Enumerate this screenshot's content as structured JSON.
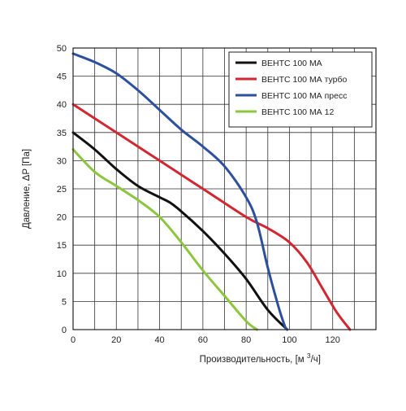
{
  "chart_data": {
    "type": "line",
    "xlabel": "Производительность, [м",
    "xlabel_sup": "3",
    "xlabel_suffix": "/ч]",
    "ylabel": "Давление, ΔP [Па]",
    "xlim": [
      0,
      140
    ],
    "ylim": [
      0,
      50
    ],
    "x_grid_step": 10,
    "y_grid_step": 5,
    "x_ticks": [
      0,
      20,
      40,
      60,
      80,
      100,
      120
    ],
    "y_ticks": [
      0,
      5,
      10,
      15,
      20,
      25,
      30,
      35,
      40,
      45,
      50
    ],
    "grid": true,
    "legend_position": "top-right",
    "series": [
      {
        "name": "ВЕНТС 100 МА",
        "color": "#111111",
        "points": [
          [
            0,
            35
          ],
          [
            10,
            32
          ],
          [
            20,
            28.5
          ],
          [
            30,
            25.5
          ],
          [
            40,
            23.5
          ],
          [
            45,
            22.5
          ],
          [
            50,
            21
          ],
          [
            60,
            17.5
          ],
          [
            70,
            13.5
          ],
          [
            80,
            9
          ],
          [
            90,
            3.5
          ],
          [
            99,
            0
          ]
        ]
      },
      {
        "name": "ВЕНТС 100 МА турбо",
        "color": "#d22630",
        "points": [
          [
            0,
            40
          ],
          [
            20,
            35
          ],
          [
            40,
            30
          ],
          [
            60,
            25
          ],
          [
            80,
            20
          ],
          [
            90,
            18
          ],
          [
            100,
            15.5
          ],
          [
            108,
            12
          ],
          [
            115,
            7.5
          ],
          [
            122,
            3
          ],
          [
            128,
            0
          ]
        ]
      },
      {
        "name": "ВЕНТС 100 МА пресс",
        "color": "#2c4f9e",
        "points": [
          [
            0,
            49
          ],
          [
            10,
            47.5
          ],
          [
            20,
            45.5
          ],
          [
            30,
            42.5
          ],
          [
            40,
            39
          ],
          [
            50,
            35.5
          ],
          [
            60,
            32.5
          ],
          [
            70,
            29
          ],
          [
            80,
            23.5
          ],
          [
            85,
            19
          ],
          [
            90,
            11
          ],
          [
            95,
            4
          ],
          [
            98,
            0.5
          ],
          [
            99,
            0
          ]
        ]
      },
      {
        "name": "ВЕНТС 100 МА 12",
        "color": "#8cc63f",
        "points": [
          [
            0,
            32
          ],
          [
            10,
            28
          ],
          [
            20,
            25.5
          ],
          [
            30,
            23
          ],
          [
            40,
            20
          ],
          [
            50,
            15.5
          ],
          [
            60,
            10.5
          ],
          [
            70,
            6
          ],
          [
            80,
            1.5
          ],
          [
            85,
            0
          ]
        ]
      }
    ]
  }
}
